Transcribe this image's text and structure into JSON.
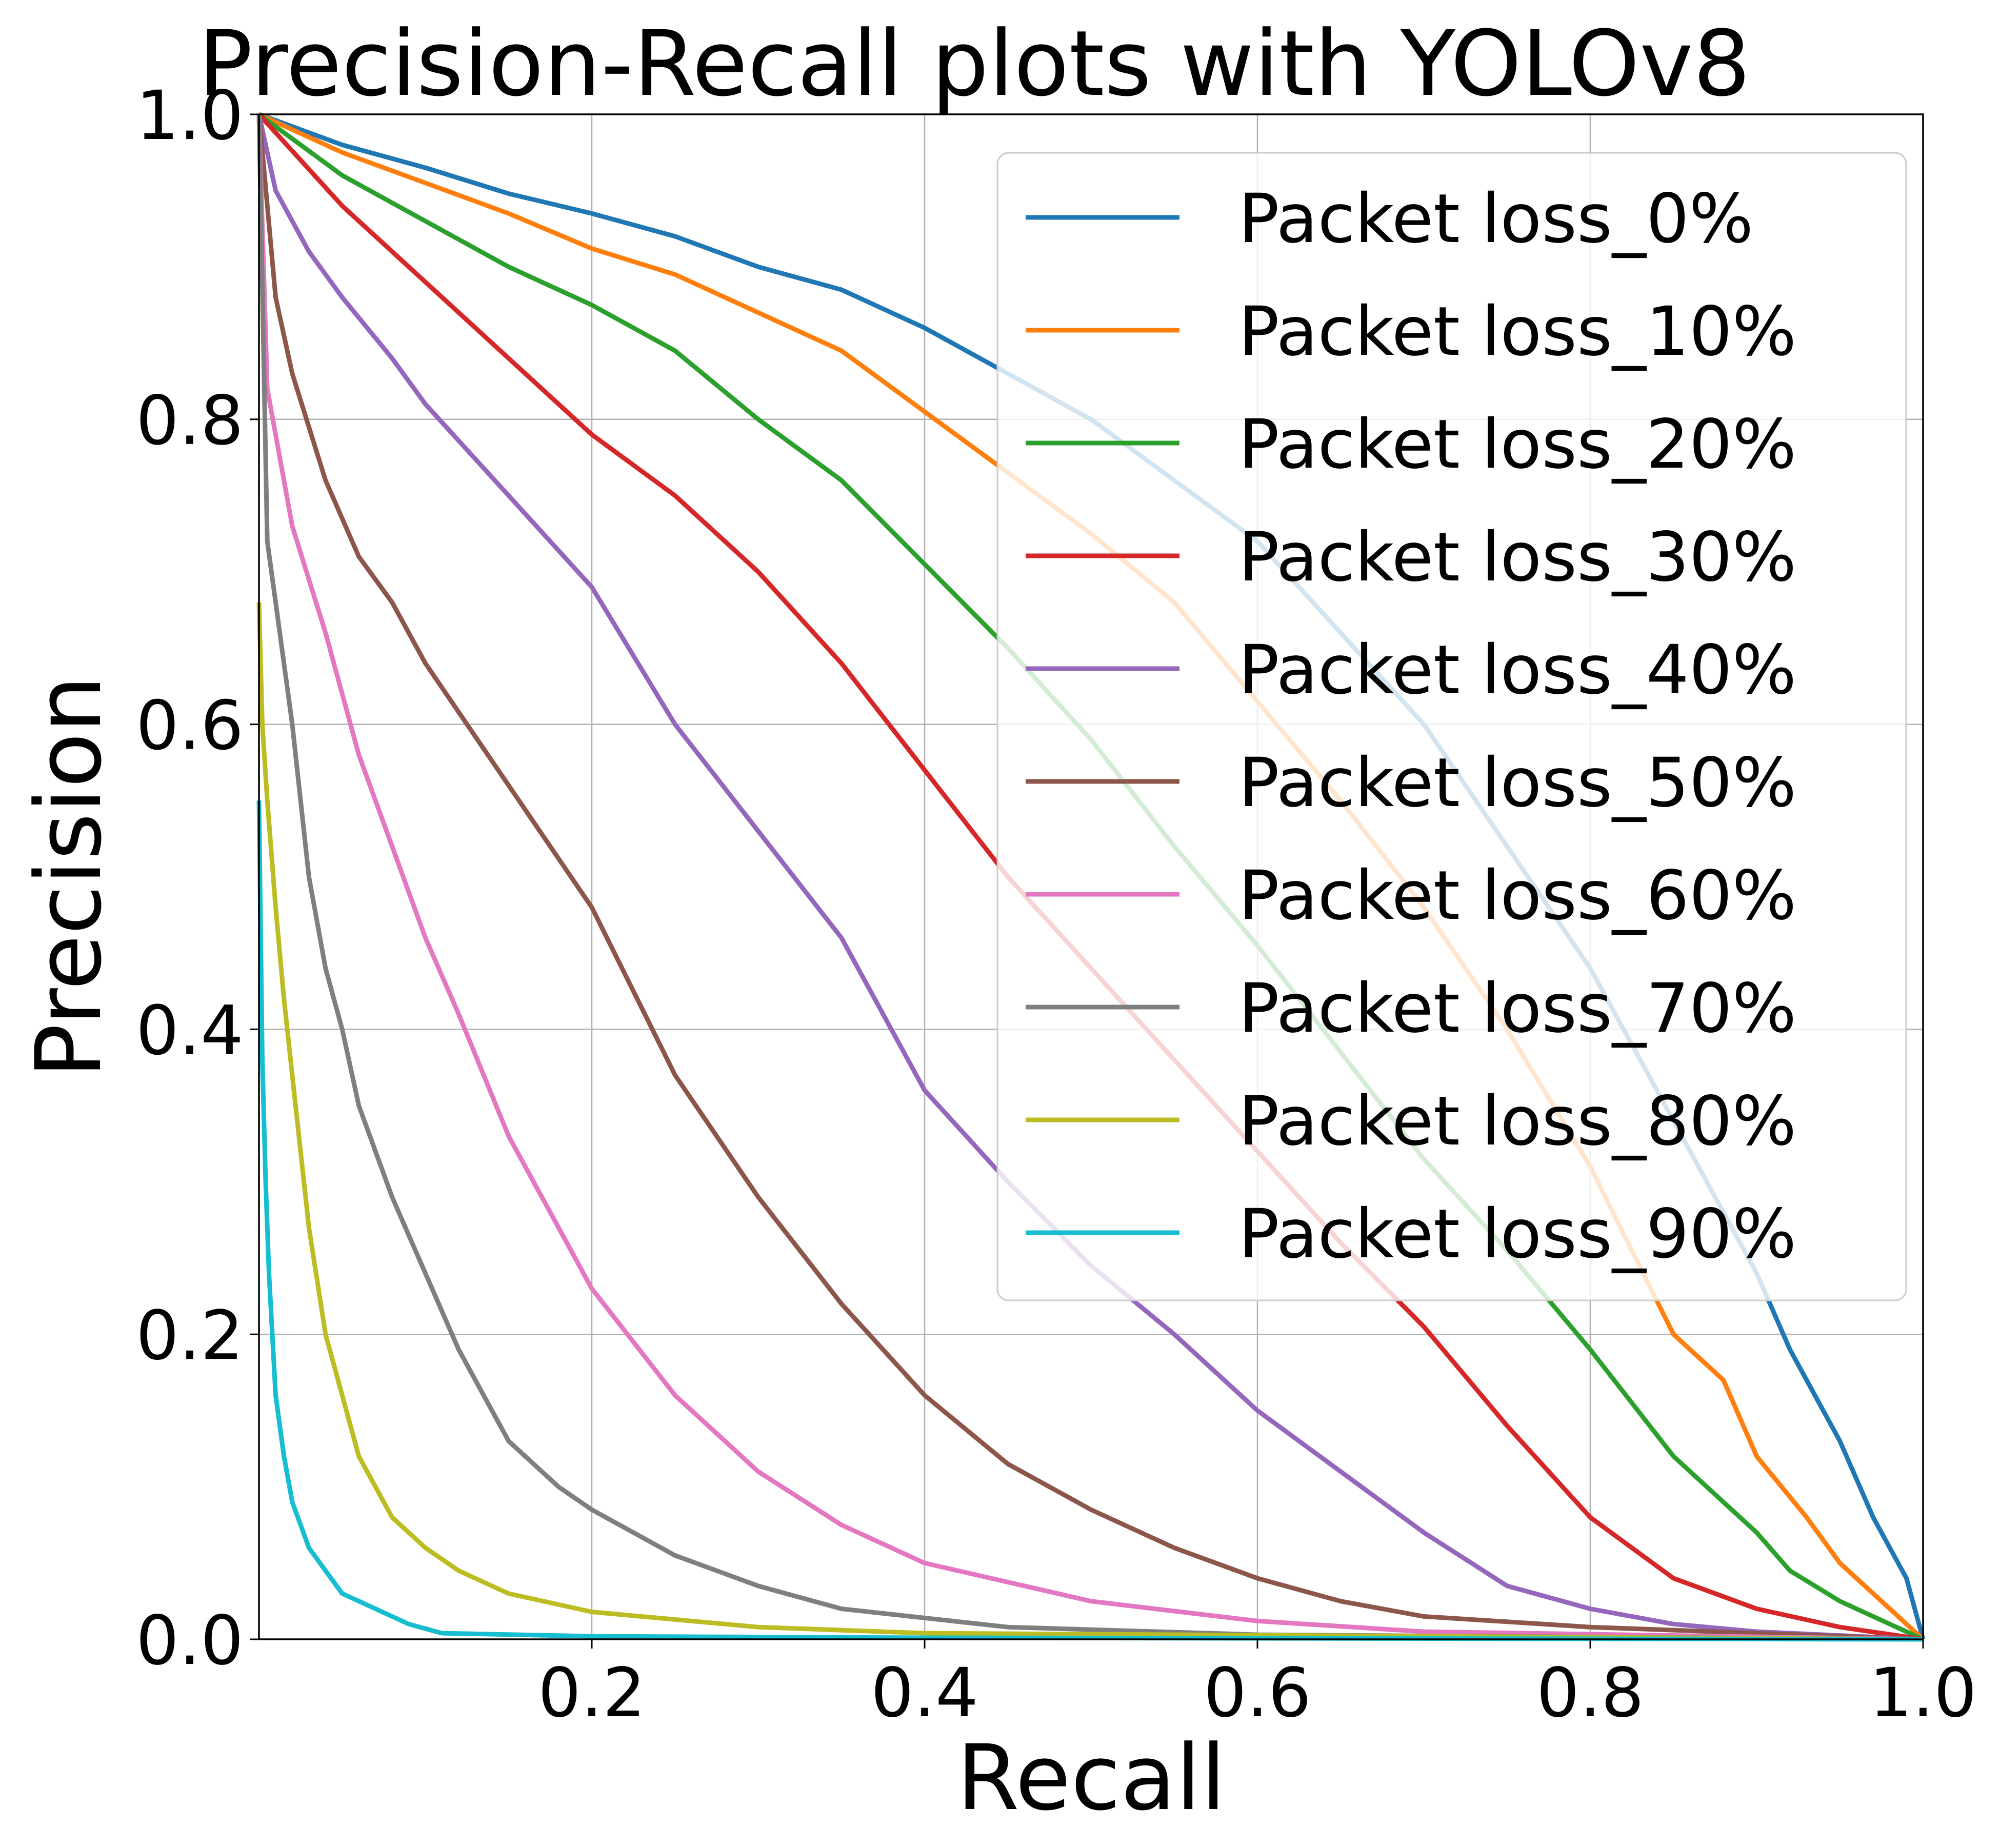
{
  "chart_data": {
    "type": "line",
    "title": "Precision-Recall plots with YOLOv8",
    "xlabel": "Recall",
    "ylabel": "Precision",
    "xlim": [
      0,
      1
    ],
    "ylim": [
      0,
      1
    ],
    "xticks": [
      {
        "value": 0.2,
        "label": "0.2"
      },
      {
        "value": 0.4,
        "label": "0.4"
      },
      {
        "value": 0.6,
        "label": "0.6"
      },
      {
        "value": 0.8,
        "label": "0.8"
      },
      {
        "value": 1.0,
        "label": "1.0"
      }
    ],
    "yticks": [
      {
        "value": 0.0,
        "label": "0.0"
      },
      {
        "value": 0.2,
        "label": "0.2"
      },
      {
        "value": 0.4,
        "label": "0.4"
      },
      {
        "value": 0.6,
        "label": "0.6"
      },
      {
        "value": 0.8,
        "label": "0.8"
      },
      {
        "value": 1.0,
        "label": "1.0"
      }
    ],
    "grid": true,
    "legend_position": "upper-right",
    "series": [
      {
        "name": "Packet loss_0%",
        "color": "#1f77b4",
        "x": [
          0,
          0.05,
          0.1,
          0.15,
          0.2,
          0.25,
          0.3,
          0.35,
          0.4,
          0.45,
          0.5,
          0.55,
          0.6,
          0.65,
          0.7,
          0.75,
          0.8,
          0.85,
          0.9,
          0.92,
          0.95,
          0.97,
          0.99,
          1.0
        ],
        "y": [
          1.0,
          0.98,
          0.965,
          0.948,
          0.935,
          0.92,
          0.9,
          0.885,
          0.86,
          0.83,
          0.8,
          0.76,
          0.72,
          0.66,
          0.6,
          0.52,
          0.44,
          0.34,
          0.24,
          0.19,
          0.13,
          0.08,
          0.04,
          0.0
        ]
      },
      {
        "name": "Packet loss_10%",
        "color": "#ff7f0e",
        "x": [
          0,
          0.05,
          0.1,
          0.15,
          0.2,
          0.25,
          0.3,
          0.35,
          0.4,
          0.45,
          0.5,
          0.55,
          0.6,
          0.65,
          0.7,
          0.75,
          0.8,
          0.85,
          0.88,
          0.9,
          0.93,
          0.95,
          0.98,
          1.0
        ],
        "y": [
          1.0,
          0.975,
          0.955,
          0.935,
          0.912,
          0.895,
          0.87,
          0.845,
          0.805,
          0.765,
          0.725,
          0.68,
          0.615,
          0.55,
          0.48,
          0.4,
          0.31,
          0.2,
          0.17,
          0.12,
          0.08,
          0.05,
          0.02,
          0.0
        ]
      },
      {
        "name": "Packet loss_20%",
        "color": "#2ca02c",
        "x": [
          0,
          0.05,
          0.1,
          0.15,
          0.2,
          0.25,
          0.3,
          0.35,
          0.4,
          0.45,
          0.5,
          0.55,
          0.6,
          0.65,
          0.7,
          0.75,
          0.8,
          0.85,
          0.9,
          0.92,
          0.95,
          0.98,
          1.0
        ],
        "y": [
          1.0,
          0.96,
          0.93,
          0.9,
          0.875,
          0.845,
          0.8,
          0.76,
          0.705,
          0.65,
          0.59,
          0.52,
          0.455,
          0.385,
          0.315,
          0.255,
          0.19,
          0.12,
          0.07,
          0.045,
          0.025,
          0.01,
          0.0
        ]
      },
      {
        "name": "Packet loss_30%",
        "color": "#d62728",
        "x": [
          0,
          0.05,
          0.1,
          0.15,
          0.2,
          0.25,
          0.3,
          0.35,
          0.4,
          0.45,
          0.5,
          0.55,
          0.6,
          0.65,
          0.7,
          0.75,
          0.8,
          0.85,
          0.9,
          0.95,
          1.0
        ],
        "y": [
          1.0,
          0.94,
          0.89,
          0.84,
          0.79,
          0.75,
          0.7,
          0.64,
          0.57,
          0.5,
          0.44,
          0.38,
          0.32,
          0.26,
          0.205,
          0.14,
          0.08,
          0.04,
          0.02,
          0.008,
          0.0
        ]
      },
      {
        "name": "Packet loss_40%",
        "color": "#9467bd",
        "x": [
          0,
          0.01,
          0.03,
          0.05,
          0.08,
          0.1,
          0.15,
          0.2,
          0.25,
          0.3,
          0.35,
          0.4,
          0.45,
          0.5,
          0.55,
          0.6,
          0.65,
          0.7,
          0.75,
          0.8,
          0.85,
          0.9,
          1.0
        ],
        "y": [
          1.0,
          0.95,
          0.91,
          0.88,
          0.84,
          0.81,
          0.75,
          0.69,
          0.6,
          0.53,
          0.46,
          0.36,
          0.3,
          0.245,
          0.2,
          0.15,
          0.11,
          0.07,
          0.035,
          0.02,
          0.01,
          0.005,
          0.0
        ]
      },
      {
        "name": "Packet loss_50%",
        "color": "#8c564b",
        "x": [
          0,
          0.01,
          0.02,
          0.04,
          0.06,
          0.08,
          0.1,
          0.15,
          0.2,
          0.25,
          0.3,
          0.35,
          0.4,
          0.45,
          0.5,
          0.55,
          0.6,
          0.65,
          0.7,
          0.8,
          0.9,
          1.0
        ],
        "y": [
          1.0,
          0.88,
          0.83,
          0.76,
          0.71,
          0.68,
          0.64,
          0.56,
          0.48,
          0.37,
          0.29,
          0.22,
          0.16,
          0.115,
          0.085,
          0.06,
          0.04,
          0.025,
          0.015,
          0.008,
          0.004,
          0.0
        ]
      },
      {
        "name": "Packet loss_60%",
        "color": "#e377c2",
        "x": [
          0,
          0.005,
          0.02,
          0.04,
          0.06,
          0.08,
          0.1,
          0.12,
          0.15,
          0.18,
          0.2,
          0.25,
          0.3,
          0.35,
          0.4,
          0.5,
          0.6,
          0.7,
          1.0
        ],
        "y": [
          1.0,
          0.82,
          0.73,
          0.66,
          0.58,
          0.52,
          0.46,
          0.41,
          0.33,
          0.27,
          0.23,
          0.16,
          0.11,
          0.075,
          0.05,
          0.025,
          0.012,
          0.005,
          0.0
        ]
      },
      {
        "name": "Packet loss_70%",
        "color": "#7f7f7f",
        "x": [
          0,
          0.005,
          0.01,
          0.02,
          0.03,
          0.04,
          0.05,
          0.06,
          0.08,
          0.1,
          0.12,
          0.15,
          0.18,
          0.2,
          0.25,
          0.3,
          0.35,
          0.45,
          0.6,
          1.0
        ],
        "y": [
          1.0,
          0.72,
          0.68,
          0.6,
          0.5,
          0.44,
          0.4,
          0.35,
          0.29,
          0.24,
          0.19,
          0.13,
          0.1,
          0.085,
          0.055,
          0.035,
          0.02,
          0.008,
          0.003,
          0.0
        ]
      },
      {
        "name": "Packet loss_80%",
        "color": "#bcbd22",
        "x": [
          0,
          0.002,
          0.005,
          0.01,
          0.015,
          0.02,
          0.025,
          0.03,
          0.04,
          0.05,
          0.06,
          0.08,
          0.1,
          0.12,
          0.15,
          0.2,
          0.3,
          0.4,
          1.0
        ],
        "y": [
          0.68,
          0.6,
          0.55,
          0.48,
          0.42,
          0.37,
          0.32,
          0.27,
          0.2,
          0.16,
          0.12,
          0.08,
          0.06,
          0.045,
          0.03,
          0.018,
          0.008,
          0.004,
          0.0
        ]
      },
      {
        "name": "Packet loss_90%",
        "color": "#17becf",
        "x": [
          0,
          0.002,
          0.004,
          0.006,
          0.008,
          0.01,
          0.015,
          0.02,
          0.03,
          0.04,
          0.05,
          0.07,
          0.09,
          0.11,
          0.2,
          0.4,
          1.0
        ],
        "y": [
          0.55,
          0.38,
          0.3,
          0.24,
          0.2,
          0.16,
          0.12,
          0.09,
          0.06,
          0.045,
          0.03,
          0.02,
          0.01,
          0.004,
          0.002,
          0.001,
          0.0
        ]
      }
    ]
  }
}
